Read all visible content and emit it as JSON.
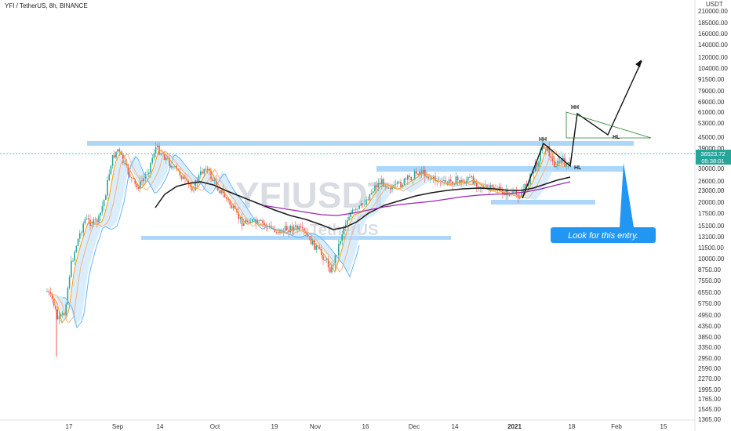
{
  "header": {
    "title": "YFI / TetherUS, 8h, BINANCE"
  },
  "watermark": {
    "symbol": "YFIUSDT",
    "name": "TetherUS"
  },
  "price_scale": {
    "unit": "USDT",
    "labels": [
      "210000.00",
      "185000.00",
      "160000.00",
      "140000.00",
      "120000.00",
      "104000.00",
      "91500.00",
      "79000.00",
      "69000.00",
      "61000.00",
      "53000.00",
      "45000.00",
      "39000.00",
      "30000.00",
      "26000.00",
      "23000.00",
      "20000.00",
      "17500.00",
      "15100.00",
      "13100.00",
      "11500.00",
      "10000.00",
      "8750.00",
      "7550.00",
      "6550.00",
      "5750.00",
      "4950.00",
      "4350.00",
      "3850.00",
      "3350.00",
      "2950.00",
      "2590.00",
      "2270.00",
      "1995.00",
      "1765.00",
      "1545.00",
      "1365.00"
    ],
    "last_price": "36523.72",
    "countdown": "05:38:01"
  },
  "time_axis": {
    "labels": [
      "17",
      "Sep",
      "14",
      "Oct",
      "19",
      "Nov",
      "16",
      "Dec",
      "14",
      "2021",
      "18",
      "Feb",
      "15"
    ]
  },
  "annotations": {
    "hh_upper": "HH",
    "hh_lower": "HH",
    "hl_upper": "HL",
    "hl_lower": "HL",
    "callout": "Look for this entry."
  },
  "colors": {
    "candle_up": "#26a69a",
    "candle_down": "#ef5350",
    "zone": "#90caf9",
    "ribbon": "#bbdefb",
    "ma_black": "#1a1a1a",
    "ma_purple": "#9c27b0",
    "ema_orange": "#ff9800",
    "callout_bg": "#2196f3",
    "price_tag_bg": "#26a69a",
    "target_triangle": "#2e7d32"
  },
  "chart_data": {
    "type": "candlestick",
    "title": "YFI / TetherUS, 8h, BINANCE",
    "y_scale": "log",
    "ylim": [
      1365,
      230000
    ],
    "last_price": 36523.72,
    "support_resistance_zones_usdt": [
      41000,
      30000,
      20000,
      13100
    ],
    "pattern_points": [
      {
        "label": "HH",
        "price": 40000
      },
      {
        "label": "HL",
        "price": 31000
      },
      {
        "label": "HH",
        "price": 58000
      },
      {
        "label": "HL",
        "price": 43000
      }
    ],
    "projected_target_usdt": 125000,
    "annotation": "Look for this entry."
  }
}
